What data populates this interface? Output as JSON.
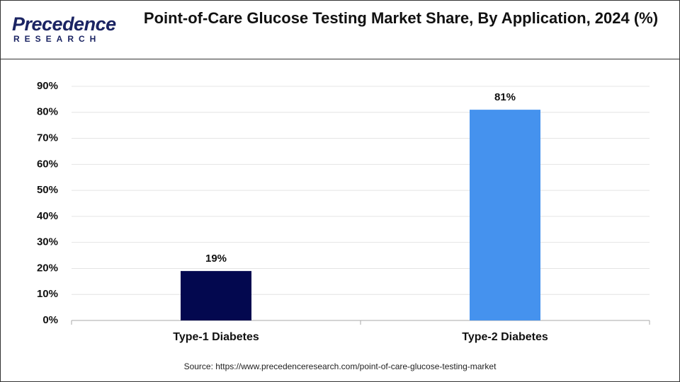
{
  "logo": {
    "name": "Precedence",
    "tagline": "RESEARCH"
  },
  "chart_data": {
    "type": "bar",
    "title": "Point-of-Care Glucose Testing Market Share, By Application, 2024 (%)",
    "categories": [
      "Type-1 Diabetes",
      "Type-2 Diabetes"
    ],
    "values": [
      19,
      81
    ],
    "value_labels": [
      "19%",
      "81%"
    ],
    "colors": [
      "#03084f",
      "#4592ee"
    ],
    "ylim": [
      0,
      90
    ],
    "yticks": [
      {
        "value": 0,
        "label": "0%"
      },
      {
        "value": 10,
        "label": "10%"
      },
      {
        "value": 20,
        "label": "20%"
      },
      {
        "value": 30,
        "label": "30%"
      },
      {
        "value": 40,
        "label": "40%"
      },
      {
        "value": 50,
        "label": "50%"
      },
      {
        "value": 60,
        "label": "60%"
      },
      {
        "value": 70,
        "label": "70%"
      },
      {
        "value": 80,
        "label": "80%"
      },
      {
        "value": 90,
        "label": "90%"
      }
    ],
    "grid": true,
    "source": "Source: https://www.precedenceresearch.com/point-of-care-glucose-testing-market"
  }
}
